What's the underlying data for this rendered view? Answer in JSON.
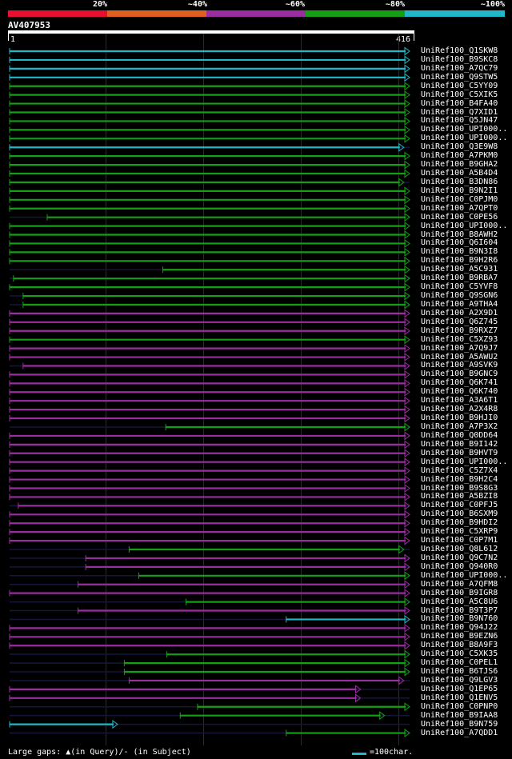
{
  "header": {
    "percent_labels": [
      "20%",
      "~40%",
      "~60%",
      "~80%",
      "~100%"
    ],
    "band_colors": [
      "#e8102e",
      "#e06020",
      "#9a2ea0",
      "#14a014",
      "#20b8c8"
    ]
  },
  "query": {
    "name": "AV407953",
    "start": "1",
    "end": "416"
  },
  "footer": {
    "large_gaps": "Large gaps: ▲(in Query)/- (in Subject)",
    "legend": "=100char.",
    "legend_color": "#20b8c8"
  },
  "hits": [
    {
      "label": "UniRef100_Q1SKW8",
      "color": "cyan",
      "start": 1,
      "end": 416
    },
    {
      "label": "UniRef100_B9SKC8",
      "color": "cyan",
      "start": 1,
      "end": 416
    },
    {
      "label": "UniRef100_A7QC79",
      "color": "cyan",
      "start": 1,
      "end": 416
    },
    {
      "label": "UniRef100_Q9STW5",
      "color": "cyan",
      "start": 1,
      "end": 416
    },
    {
      "label": "UniRef100_C5YY09",
      "color": "green",
      "start": 1,
      "end": 416
    },
    {
      "label": "UniRef100_C5XIK5",
      "color": "green",
      "start": 1,
      "end": 416
    },
    {
      "label": "UniRef100_B4FA40",
      "color": "green",
      "start": 1,
      "end": 416
    },
    {
      "label": "UniRef100_Q7XID1",
      "color": "green",
      "start": 1,
      "end": 416
    },
    {
      "label": "UniRef100_Q5JN47",
      "color": "green",
      "start": 1,
      "end": 416
    },
    {
      "label": "UniRef100_UPI000..",
      "color": "green",
      "start": 1,
      "end": 416
    },
    {
      "label": "UniRef100_UPI000..",
      "color": "green",
      "start": 1,
      "end": 416
    },
    {
      "label": "UniRef100_Q3E9W8",
      "color": "cyan",
      "start": 1,
      "end": 410
    },
    {
      "label": "UniRef100_A7PKM0",
      "color": "green",
      "start": 1,
      "end": 416
    },
    {
      "label": "UniRef100_B9GHA2",
      "color": "green",
      "start": 1,
      "end": 416
    },
    {
      "label": "UniRef100_A5B4D4",
      "color": "green",
      "start": 1,
      "end": 416
    },
    {
      "label": "UniRef100_B3DN86",
      "color": "green",
      "start": 1,
      "end": 410
    },
    {
      "label": "UniRef100_B9N2I1",
      "color": "green",
      "start": 1,
      "end": 416
    },
    {
      "label": "UniRef100_C0PJM0",
      "color": "green",
      "start": 1,
      "end": 416
    },
    {
      "label": "UniRef100_A7QPT0",
      "color": "green",
      "start": 1,
      "end": 416
    },
    {
      "label": "UniRef100_C0PE56",
      "color": "green",
      "start": 40,
      "end": 416
    },
    {
      "label": "UniRef100_UPI000..",
      "color": "green",
      "start": 1,
      "end": 416
    },
    {
      "label": "UniRef100_B8AWH2",
      "color": "green",
      "start": 1,
      "end": 416
    },
    {
      "label": "UniRef100_Q6I604",
      "color": "green",
      "start": 1,
      "end": 416
    },
    {
      "label": "UniRef100_B9N3I8",
      "color": "green",
      "start": 1,
      "end": 416
    },
    {
      "label": "UniRef100_B9H2R6",
      "color": "green",
      "start": 1,
      "end": 416
    },
    {
      "label": "UniRef100_A5C931",
      "color": "green",
      "start": 160,
      "end": 416
    },
    {
      "label": "UniRef100_B9RBA7",
      "color": "green",
      "start": 5,
      "end": 416
    },
    {
      "label": "UniRef100_C5YVF8",
      "color": "green",
      "start": 1,
      "end": 416
    },
    {
      "label": "UniRef100_Q9SGN6",
      "color": "green",
      "start": 15,
      "end": 416
    },
    {
      "label": "UniRef100_A9THA4",
      "color": "green",
      "start": 15,
      "end": 416
    },
    {
      "label": "UniRef100_A2X9D1",
      "color": "purple",
      "start": 1,
      "end": 416
    },
    {
      "label": "UniRef100_Q6Z745",
      "color": "purple",
      "start": 1,
      "end": 416
    },
    {
      "label": "UniRef100_B9RXZ7",
      "color": "purple",
      "start": 1,
      "end": 416
    },
    {
      "label": "UniRef100_C5XZ93",
      "color": "green",
      "start": 1,
      "end": 416
    },
    {
      "label": "UniRef100_A7Q9J7",
      "color": "purple",
      "start": 1,
      "end": 416
    },
    {
      "label": "UniRef100_A5AWU2",
      "color": "purple",
      "start": 1,
      "end": 416
    },
    {
      "label": "UniRef100_A9SVK9",
      "color": "purple",
      "start": 15,
      "end": 416
    },
    {
      "label": "UniRef100_B9GNC9",
      "color": "purple",
      "start": 1,
      "end": 416
    },
    {
      "label": "UniRef100_Q6K741",
      "color": "purple",
      "start": 1,
      "end": 416
    },
    {
      "label": "UniRef100_Q6K740",
      "color": "purple",
      "start": 1,
      "end": 416
    },
    {
      "label": "UniRef100_A3A6T1",
      "color": "purple",
      "start": 1,
      "end": 416
    },
    {
      "label": "UniRef100_A2X4R8",
      "color": "purple",
      "start": 1,
      "end": 416
    },
    {
      "label": "UniRef100_B9HJI0",
      "color": "purple",
      "start": 1,
      "end": 416
    },
    {
      "label": "UniRef100_A7P3X2",
      "color": "green",
      "start": 163,
      "end": 416
    },
    {
      "label": "UniRef100_Q0DD64",
      "color": "purple",
      "start": 1,
      "end": 416
    },
    {
      "label": "UniRef100_B9I142",
      "color": "purple",
      "start": 1,
      "end": 416
    },
    {
      "label": "UniRef100_B9HVT9",
      "color": "purple",
      "start": 1,
      "end": 416
    },
    {
      "label": "UniRef100_UPI000..",
      "color": "purple",
      "start": 1,
      "end": 416
    },
    {
      "label": "UniRef100_C5Z7X4",
      "color": "purple",
      "start": 1,
      "end": 416
    },
    {
      "label": "UniRef100_B9H2C4",
      "color": "purple",
      "start": 1,
      "end": 416
    },
    {
      "label": "UniRef100_B9S8G3",
      "color": "purple",
      "start": 1,
      "end": 416
    },
    {
      "label": "UniRef100_A5BZI8",
      "color": "purple",
      "start": 1,
      "end": 416
    },
    {
      "label": "UniRef100_C0PFJ5",
      "color": "purple",
      "start": 10,
      "end": 416
    },
    {
      "label": "UniRef100_B6SXM9",
      "color": "purple",
      "start": 1,
      "end": 416
    },
    {
      "label": "UniRef100_B9HDI2",
      "color": "purple",
      "start": 1,
      "end": 416
    },
    {
      "label": "UniRef100_C5XRP9",
      "color": "purple",
      "start": 1,
      "end": 416
    },
    {
      "label": "UniRef100_C0P7M1",
      "color": "purple",
      "start": 1,
      "end": 416
    },
    {
      "label": "UniRef100_Q8L612",
      "color": "green",
      "start": 125,
      "end": 410
    },
    {
      "label": "UniRef100_Q9C7N2",
      "color": "purple",
      "start": 80,
      "end": 416
    },
    {
      "label": "UniRef100_Q940R0",
      "color": "purple",
      "start": 80,
      "end": 416
    },
    {
      "label": "UniRef100_UPI000..",
      "color": "green",
      "start": 135,
      "end": 416
    },
    {
      "label": "UniRef100_A7QFM8",
      "color": "purple",
      "start": 72,
      "end": 416
    },
    {
      "label": "UniRef100_B9IGR8",
      "color": "purple",
      "start": 1,
      "end": 416
    },
    {
      "label": "UniRef100_A5C8U6",
      "color": "green",
      "start": 184,
      "end": 416
    },
    {
      "label": "UniRef100_B9T3P7",
      "color": "purple",
      "start": 72,
      "end": 416
    },
    {
      "label": "UniRef100_B9N760",
      "color": "cyan",
      "start": 288,
      "end": 416
    },
    {
      "label": "UniRef100_Q94J22",
      "color": "purple",
      "start": 1,
      "end": 416
    },
    {
      "label": "UniRef100_B9EZN6",
      "color": "purple",
      "start": 1,
      "end": 416
    },
    {
      "label": "UniRef100_B8A9F3",
      "color": "purple",
      "start": 1,
      "end": 416
    },
    {
      "label": "UniRef100_C5XK35",
      "color": "green",
      "start": 164,
      "end": 416
    },
    {
      "label": "UniRef100_C0PEL1",
      "color": "green",
      "start": 120,
      "end": 416
    },
    {
      "label": "UniRef100_B6TJS6",
      "color": "green",
      "start": 120,
      "end": 416
    },
    {
      "label": "UniRef100_Q9LGV3",
      "color": "purple",
      "start": 125,
      "end": 410
    },
    {
      "label": "UniRef100_Q1EP65",
      "color": "purple",
      "start": 1,
      "end": 365
    },
    {
      "label": "UniRef100_Q1ENV5",
      "color": "purple",
      "start": 1,
      "end": 365
    },
    {
      "label": "UniRef100_C0PNP0",
      "color": "green",
      "start": 196,
      "end": 416
    },
    {
      "label": "UniRef100_B9IAA8",
      "color": "green",
      "start": 178,
      "end": 390
    },
    {
      "label": "UniRef100_B9N759",
      "color": "cyan",
      "start": 1,
      "end": 113
    },
    {
      "label": "UniRef100_A7QDD1",
      "color": "green",
      "start": 288,
      "end": 416
    }
  ]
}
